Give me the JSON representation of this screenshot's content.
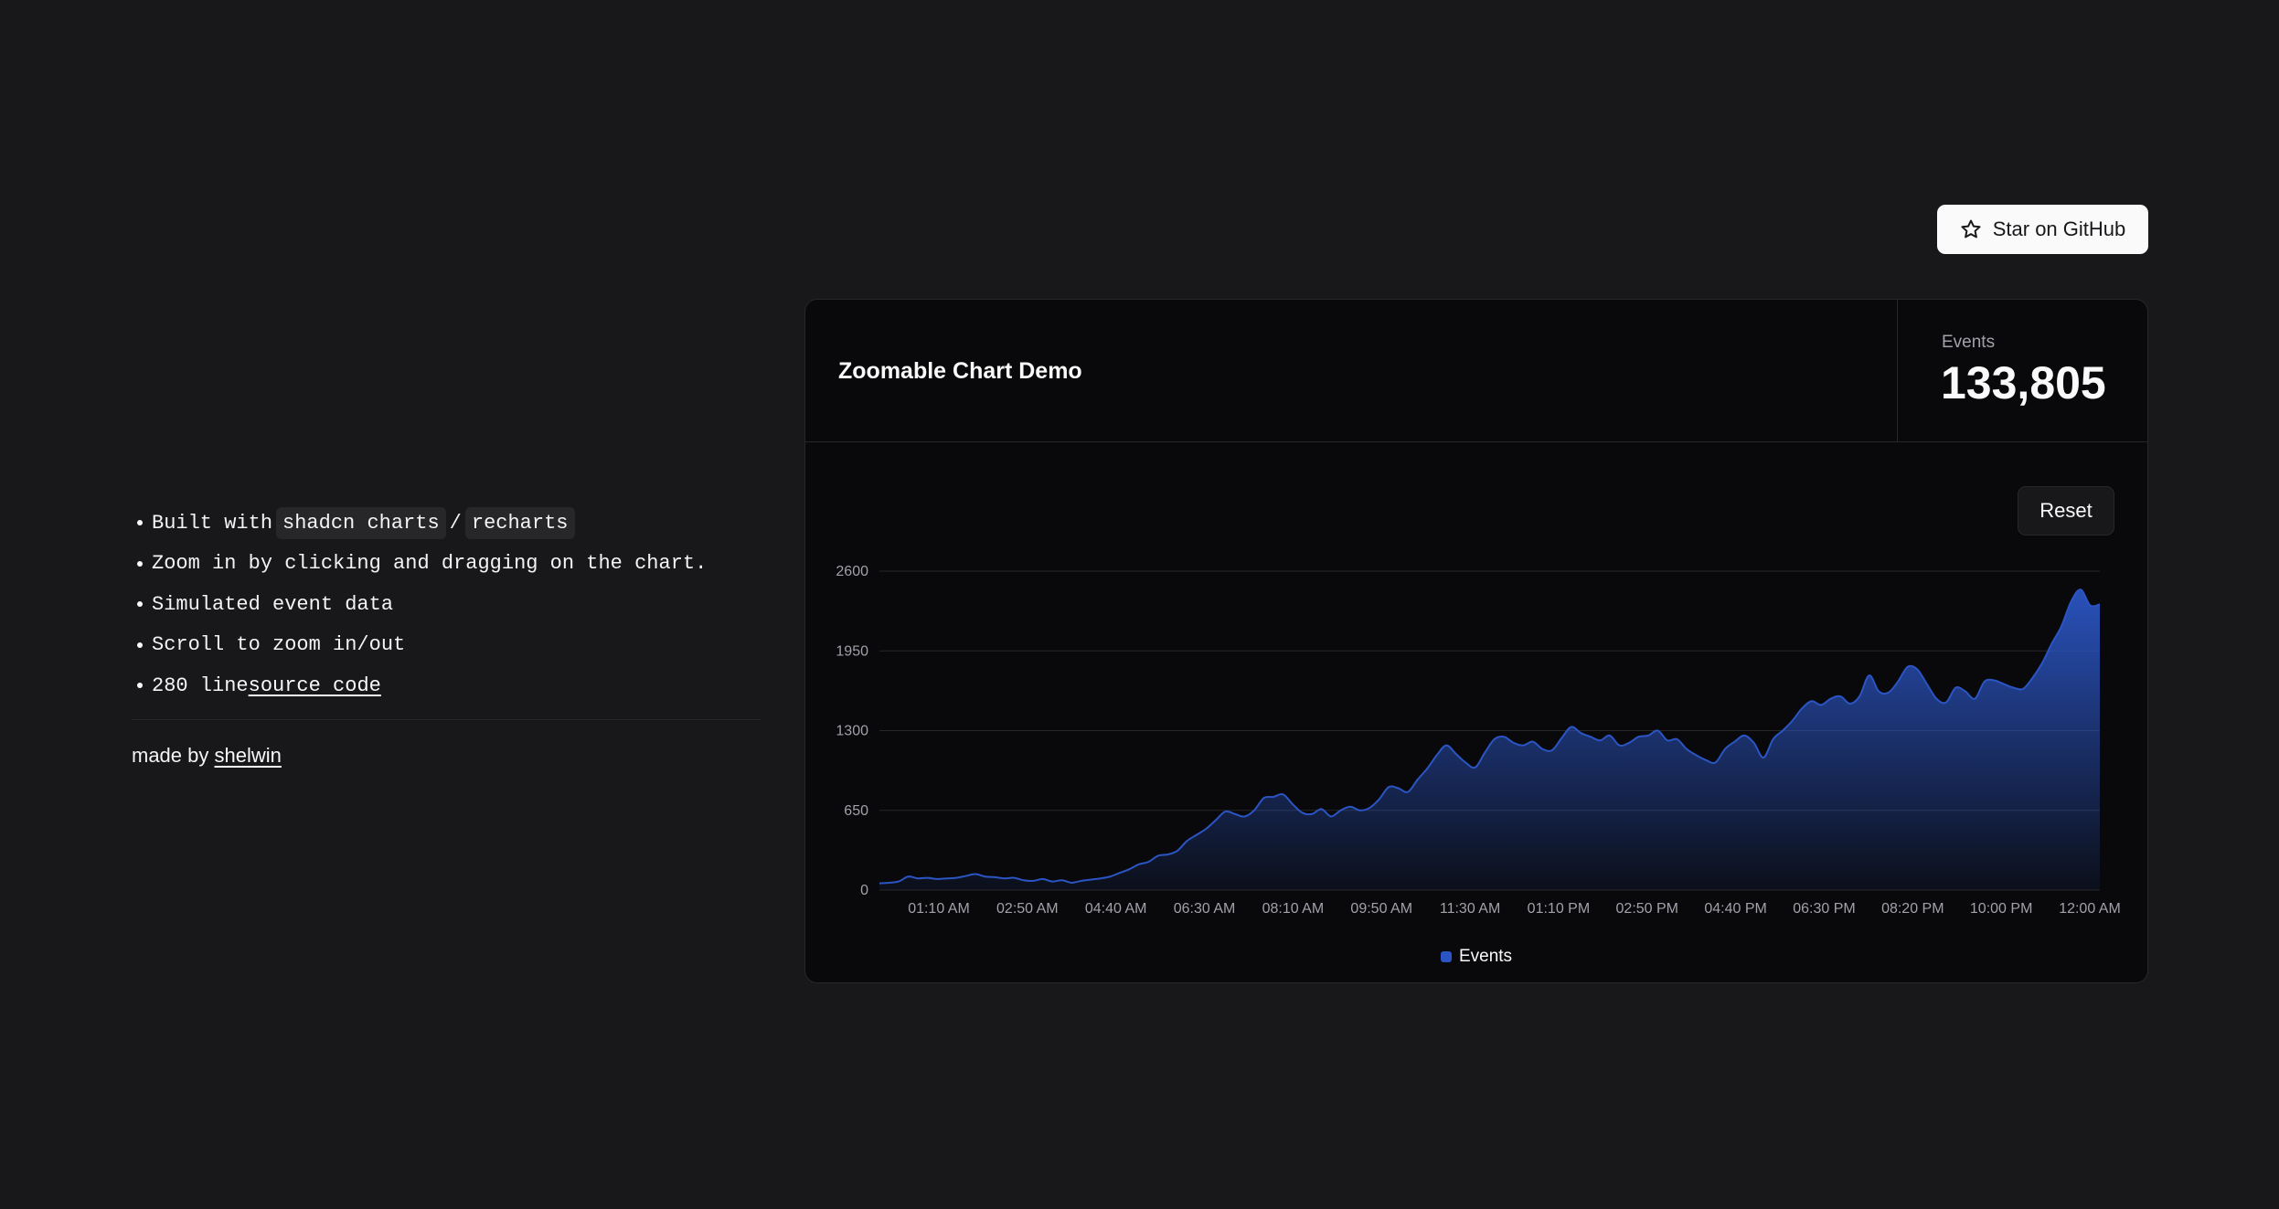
{
  "info": {
    "items": [
      {
        "prefix": "Built with",
        "code1": "shadcn charts",
        "sep": "/",
        "code2": "recharts"
      },
      {
        "text": "Zoom in by clicking and dragging on the chart."
      },
      {
        "text": "Simulated event data"
      },
      {
        "text": "Scroll to zoom in/out"
      },
      {
        "prefix": "280 line",
        "link": "source code"
      }
    ],
    "credit_prefix": "made by",
    "credit_link": "shelwin"
  },
  "github_button": {
    "label": "Star on GitHub",
    "icon": "star-icon"
  },
  "card": {
    "title": "Zoomable Chart Demo",
    "stat_label": "Events",
    "stat_value": "133,805",
    "reset_label": "Reset"
  },
  "colors": {
    "series": "#2b55c4",
    "background": "#18181b",
    "card": "#09090b"
  },
  "chart_data": {
    "type": "area",
    "title": "",
    "xlabel": "",
    "ylabel": "",
    "ylim": [
      0,
      2600
    ],
    "y_ticks": [
      0,
      650,
      1300,
      1950,
      2600
    ],
    "x_tick_labels": [
      "01:10 AM",
      "02:50 AM",
      "04:40 AM",
      "06:30 AM",
      "08:10 AM",
      "09:50 AM",
      "11:30 AM",
      "01:10 PM",
      "02:50 PM",
      "04:40 PM",
      "06:30 PM",
      "08:20 PM",
      "10:00 PM",
      "12:00 AM"
    ],
    "grid": true,
    "legend": "bottom-center",
    "series": [
      {
        "name": "Events",
        "values": [
          55,
          60,
          70,
          110,
          95,
          100,
          90,
          95,
          100,
          115,
          130,
          110,
          105,
          95,
          100,
          80,
          75,
          90,
          70,
          80,
          60,
          75,
          85,
          95,
          110,
          140,
          170,
          210,
          230,
          280,
          290,
          320,
          400,
          450,
          500,
          570,
          640,
          620,
          600,
          650,
          750,
          760,
          780,
          700,
          630,
          620,
          660,
          600,
          650,
          680,
          650,
          670,
          740,
          840,
          830,
          800,
          900,
          990,
          1100,
          1180,
          1110,
          1040,
          1000,
          1120,
          1230,
          1250,
          1200,
          1180,
          1210,
          1150,
          1140,
          1240,
          1330,
          1280,
          1250,
          1220,
          1260,
          1180,
          1200,
          1250,
          1260,
          1300,
          1220,
          1230,
          1150,
          1100,
          1060,
          1040,
          1150,
          1210,
          1260,
          1200,
          1080,
          1230,
          1300,
          1380,
          1480,
          1540,
          1510,
          1560,
          1580,
          1520,
          1580,
          1750,
          1620,
          1610,
          1700,
          1820,
          1800,
          1680,
          1560,
          1530,
          1650,
          1620,
          1560,
          1700,
          1710,
          1680,
          1650,
          1640,
          1730,
          1850,
          2010,
          2150,
          2350,
          2450,
          2320,
          2330
        ]
      }
    ]
  }
}
